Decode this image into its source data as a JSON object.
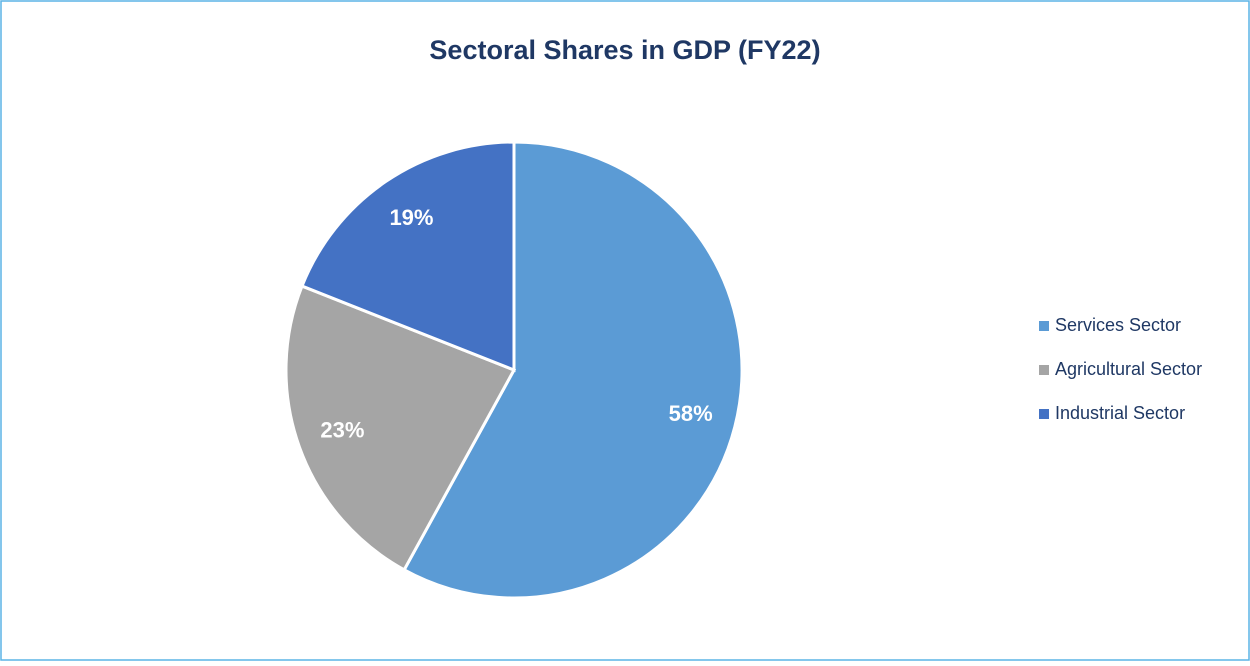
{
  "chart_data": {
    "type": "pie",
    "title": "Sectoral Shares in GDP (FY22)",
    "categories": [
      "Services Sector",
      "Agricultural Sector",
      "Industrial Sector"
    ],
    "values": [
      58,
      23,
      19
    ],
    "value_labels": [
      "58%",
      "23%",
      "19%"
    ],
    "colors": [
      "#5b9bd5",
      "#a5a5a5",
      "#4472c4"
    ],
    "legend": "right"
  }
}
